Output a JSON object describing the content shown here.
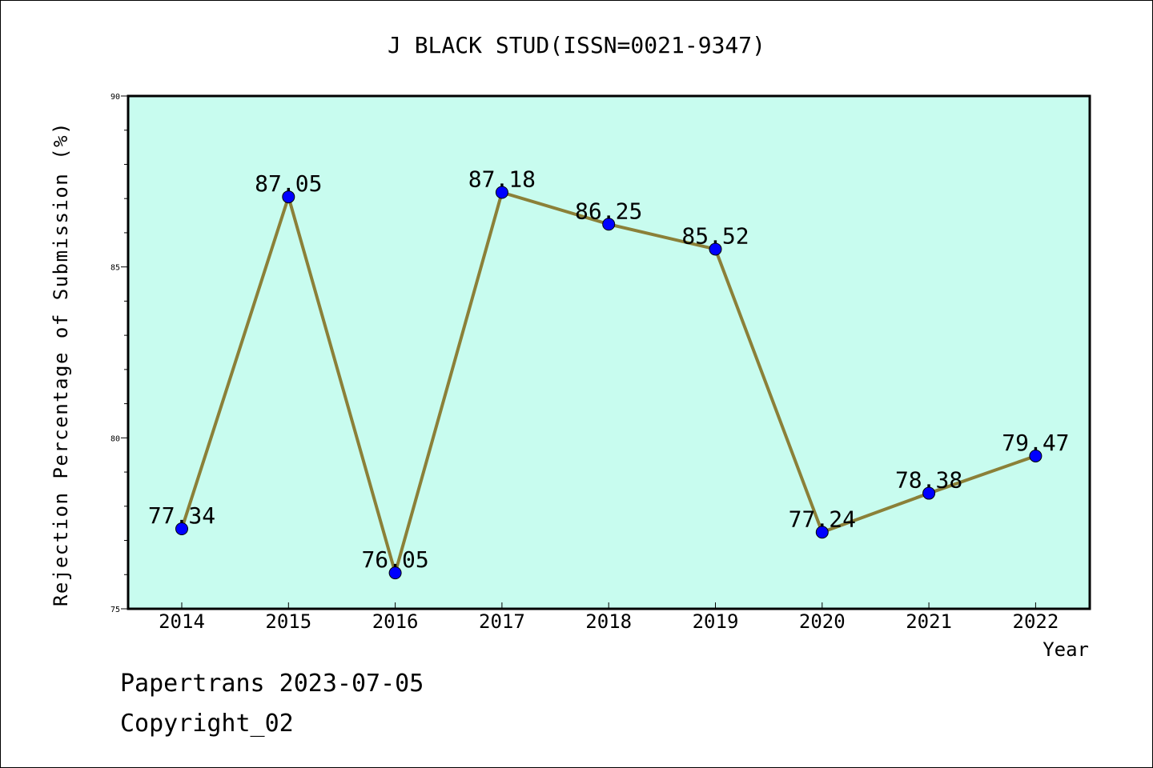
{
  "chart_data": {
    "type": "line",
    "title": "J BLACK STUD(ISSN=0021-9347)",
    "xlabel": "Year",
    "ylabel": "Rejection Percentage of Submission (%)",
    "categories": [
      "2014",
      "2015",
      "2016",
      "2017",
      "2018",
      "2019",
      "2020",
      "2021",
      "2022"
    ],
    "values": [
      77.34,
      87.05,
      76.05,
      87.18,
      86.25,
      85.52,
      77.24,
      78.38,
      79.47
    ],
    "value_labels": [
      "77.34",
      "87.05",
      "76.05",
      "87.18",
      "86.25",
      "85.52",
      "77.24",
      "78.38",
      "79.47"
    ],
    "ylim": [
      75,
      90
    ],
    "yticks": [
      "75",
      "80",
      "85",
      "90"
    ],
    "grid": false,
    "colors": {
      "plot_background": "#c8fcef",
      "line": "#8b8038",
      "marker": "#0000ff"
    }
  },
  "footer": {
    "line1": "Papertrans 2023-07-05",
    "line2": "Copyright_02"
  }
}
